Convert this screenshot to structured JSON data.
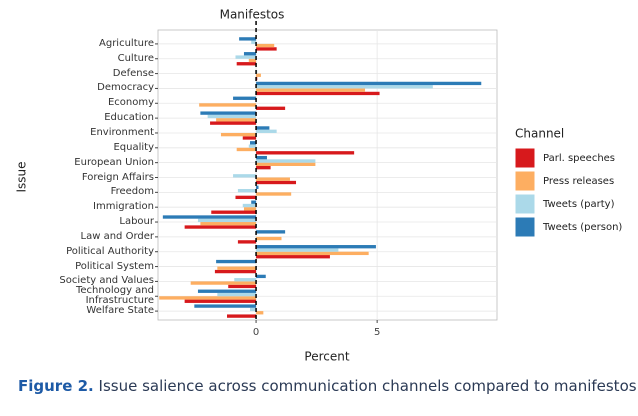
{
  "chart_data": {
    "type": "bar",
    "orientation": "horizontal",
    "title": "Manifestos",
    "x_label": "Percent",
    "y_label": "Issue",
    "legend_title": "Channel",
    "legend_position": "right",
    "categories": [
      "Agriculture",
      "Culture",
      "Defense",
      "Democracy",
      "Economy",
      "Education",
      "Environment",
      "Equality",
      "European Union",
      "Foreign Affairs",
      "Freedom",
      "Immigration",
      "Labour",
      "Law and Order",
      "Political Authority",
      "Political System",
      "Society and Values",
      "Technology and\nInfrastructure",
      "Welfare State"
    ],
    "series": [
      {
        "name": "Parl. speeches",
        "color": "#d7191c",
        "values": [
          0.85,
          -0.8,
          0.05,
          5.1,
          1.2,
          -1.9,
          -0.55,
          4.05,
          0.6,
          1.65,
          -0.85,
          -1.85,
          -2.95,
          -0.75,
          3.05,
          -1.7,
          -1.15,
          -2.95,
          -1.2
        ]
      },
      {
        "name": "Press releases",
        "color": "#fdae61",
        "values": [
          0.75,
          -0.3,
          0.2,
          4.5,
          -2.35,
          -1.65,
          -1.45,
          -0.8,
          2.45,
          1.4,
          1.45,
          -0.5,
          -2.3,
          1.05,
          4.65,
          -1.6,
          -2.7,
          -4.0,
          0.3
        ]
      },
      {
        "name": "Tweets (party)",
        "color": "#abd9e9",
        "values": [
          -0.2,
          -0.85,
          0.05,
          7.3,
          0,
          -2.0,
          0.85,
          -0.3,
          2.45,
          -0.95,
          -0.75,
          -0.55,
          -2.4,
          0,
          3.4,
          0,
          -0.9,
          -1.6,
          -0.25
        ]
      },
      {
        "name": "Tweets (person)",
        "color": "#2c7bb6",
        "values": [
          -0.7,
          -0.5,
          0,
          9.3,
          -0.95,
          -2.3,
          0.55,
          -0.25,
          0.45,
          0,
          0.1,
          -0.2,
          -3.85,
          1.2,
          4.95,
          -1.65,
          0.4,
          -2.4,
          -2.55
        ]
      }
    ],
    "xlim": [
      -4.05,
      9.95
    ],
    "xticks": [
      0,
      5
    ],
    "reference_x": 0,
    "grid": true
  },
  "caption": {
    "label": "Figure 2.",
    "text": "Issue salience across communication channels compared to manifestos."
  }
}
